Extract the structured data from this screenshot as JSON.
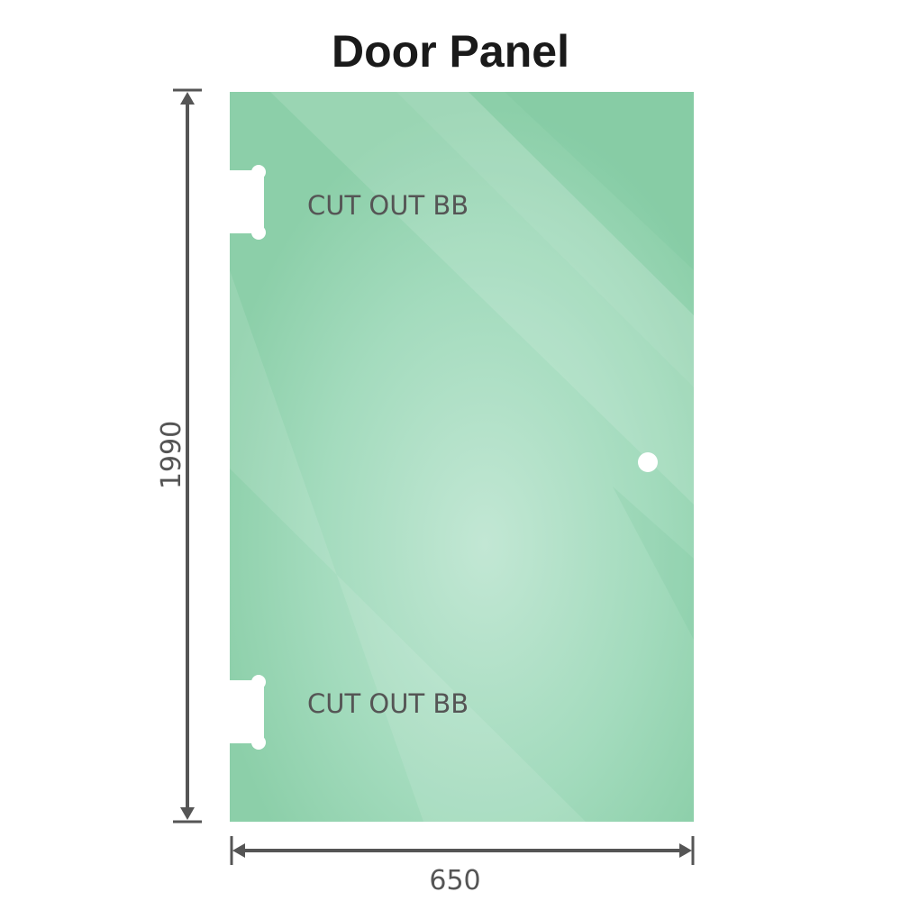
{
  "title": "Door Panel",
  "height_label": "1990",
  "width_label": "650",
  "cutouts": [
    {
      "label": "CUT OUT BB"
    },
    {
      "label": "CUT OUT BB"
    }
  ],
  "colors": {
    "glass": "#8fd0ac",
    "glass_light": "#bfe6d2",
    "dimension": "#555555"
  }
}
